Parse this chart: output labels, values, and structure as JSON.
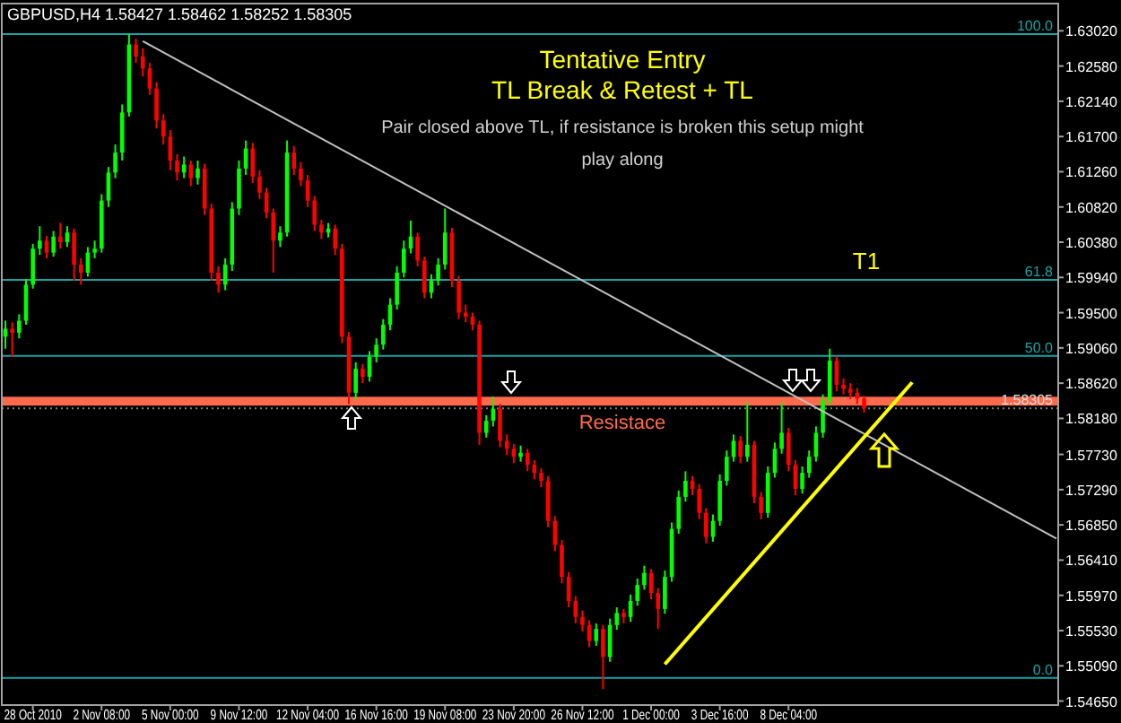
{
  "chart_data": {
    "type": "candlestick",
    "title": "GBPUSD,H4  1.58427 1.58462 1.58252 1.58305",
    "annotations": [
      "Tentative Entry",
      "TL Break & Retest + TL",
      "Pair closed above TL, if resistance is broken this setup might play along",
      {
        "text": "T1",
        "y": 1.5991
      },
      {
        "text": "100.0",
        "y": 1.6298
      },
      {
        "text": "61.8",
        "y": 1.5991
      },
      {
        "text": "50.0",
        "y": 1.5896
      },
      {
        "text": "0.0",
        "y": 1.5494
      }
    ],
    "categories": [
      null,
      null,
      null,
      null,
      "28 Oct 2010",
      null,
      null,
      null,
      null,
      null,
      null,
      null,
      null,
      null,
      "2 Nov 08:00",
      null,
      null,
      null,
      null,
      null,
      null,
      null,
      null,
      null,
      "5 Nov 00:00",
      null,
      null,
      null,
      null,
      null,
      null,
      null,
      null,
      null,
      "9 Nov 12:00",
      null,
      null,
      null,
      null,
      null,
      null,
      null,
      null,
      null,
      "12 Nov 04:00",
      null,
      null,
      null,
      null,
      null,
      null,
      null,
      null,
      null,
      "16 Nov 16:00",
      null,
      null,
      null,
      null,
      null,
      null,
      null,
      null,
      null,
      "19 Nov 08:00",
      null,
      null,
      null,
      null,
      null,
      null,
      null,
      null,
      null,
      "23 Nov 20:00",
      null,
      null,
      null,
      null,
      null,
      null,
      null,
      null,
      null,
      "26 Nov 12:00",
      null,
      null,
      null,
      null,
      null,
      null,
      null,
      null,
      null,
      "1 Dec 00:00",
      null,
      null,
      null,
      null,
      null,
      null,
      null,
      null,
      null,
      "3 Dec 16:00",
      null,
      null,
      null,
      null,
      null,
      null,
      null,
      null,
      null,
      "8 Dec 04:00",
      null,
      null,
      null,
      null,
      null,
      null,
      null,
      null,
      null,
      null,
      null,
      null,
      null,
      null,
      null,
      null,
      null,
      null,
      null,
      null,
      null,
      null,
      null,
      null,
      null,
      null,
      null,
      null,
      null,
      null,
      null,
      null,
      null,
      null,
      null,
      null,
      null,
      null,
      null
    ],
    "ohlc": [
      [
        1.592,
        1.594,
        1.5905,
        1.593
      ],
      [
        1.593,
        1.5938,
        1.5895,
        1.5925
      ],
      [
        1.5925,
        1.5948,
        1.5918,
        1.594
      ],
      [
        1.594,
        1.5992,
        1.5935,
        1.5985
      ],
      [
        1.5985,
        1.6036,
        1.598,
        1.603
      ],
      [
        1.603,
        1.6058,
        1.6022,
        1.604
      ],
      [
        1.604,
        1.6046,
        1.6018,
        1.6025
      ],
      [
        1.6025,
        1.6052,
        1.602,
        1.6045
      ],
      [
        1.6045,
        1.6062,
        1.603,
        1.6038
      ],
      [
        1.6038,
        1.6058,
        1.6032,
        1.605
      ],
      [
        1.605,
        1.6055,
        1.599,
        1.601
      ],
      [
        1.601,
        1.6018,
        1.5985,
        1.6
      ],
      [
        1.6,
        1.6032,
        1.5995,
        1.6025
      ],
      [
        1.6025,
        1.604,
        1.6018,
        1.603
      ],
      [
        1.603,
        1.6098,
        1.6025,
        1.609
      ],
      [
        1.609,
        1.6132,
        1.6082,
        1.6125
      ],
      [
        1.6125,
        1.616,
        1.6118,
        1.615
      ],
      [
        1.615,
        1.621,
        1.614,
        1.62
      ],
      [
        1.62,
        1.6298,
        1.6195,
        1.6285
      ],
      [
        1.6285,
        1.6292,
        1.6262,
        1.627
      ],
      [
        1.627,
        1.628,
        1.6245,
        1.6255
      ],
      [
        1.6255,
        1.6262,
        1.6222,
        1.623
      ],
      [
        1.623,
        1.6238,
        1.618,
        1.619
      ],
      [
        1.619,
        1.6198,
        1.616,
        1.617
      ],
      [
        1.617,
        1.6178,
        1.6128,
        1.614
      ],
      [
        1.614,
        1.6148,
        1.6115,
        1.6125
      ],
      [
        1.6125,
        1.6145,
        1.6118,
        1.6135
      ],
      [
        1.6135,
        1.614,
        1.6108,
        1.6118
      ],
      [
        1.6118,
        1.614,
        1.611,
        1.613
      ],
      [
        1.613,
        1.6136,
        1.6072,
        1.608
      ],
      [
        1.608,
        1.6086,
        1.599,
        1.6
      ],
      [
        1.6,
        1.6008,
        1.5975,
        1.5985
      ],
      [
        1.5985,
        1.6018,
        1.5978,
        1.601
      ],
      [
        1.601,
        1.6088,
        1.6002,
        1.608
      ],
      [
        1.608,
        1.614,
        1.6072,
        1.613
      ],
      [
        1.613,
        1.6165,
        1.6122,
        1.6155
      ],
      [
        1.6155,
        1.6162,
        1.6112,
        1.612
      ],
      [
        1.612,
        1.6128,
        1.6092,
        1.61
      ],
      [
        1.61,
        1.6106,
        1.6068,
        1.6075
      ],
      [
        1.6075,
        1.608,
        1.6,
        1.604
      ],
      [
        1.604,
        1.6058,
        1.6032,
        1.605
      ],
      [
        1.605,
        1.6165,
        1.6045,
        1.615
      ],
      [
        1.615,
        1.6158,
        1.6122,
        1.613
      ],
      [
        1.613,
        1.6138,
        1.6108,
        1.6115
      ],
      [
        1.6115,
        1.6122,
        1.6082,
        1.609
      ],
      [
        1.609,
        1.6096,
        1.6052,
        1.606
      ],
      [
        1.606,
        1.6066,
        1.6042,
        1.605
      ],
      [
        1.605,
        1.6062,
        1.6044,
        1.6055
      ],
      [
        1.6055,
        1.606,
        1.6022,
        1.603
      ],
      [
        1.603,
        1.6036,
        1.5912,
        1.592
      ],
      [
        1.592,
        1.5926,
        1.5836,
        1.585
      ],
      [
        1.585,
        1.5888,
        1.5842,
        1.588
      ],
      [
        1.588,
        1.5886,
        1.5862,
        1.587
      ],
      [
        1.587,
        1.5902,
        1.5864,
        1.5895
      ],
      [
        1.5895,
        1.5918,
        1.5888,
        1.591
      ],
      [
        1.591,
        1.5942,
        1.5904,
        1.5935
      ],
      [
        1.5935,
        1.5968,
        1.5928,
        1.596
      ],
      [
        1.596,
        1.6008,
        1.5954,
        1.6
      ],
      [
        1.6,
        1.604,
        1.5994,
        1.603
      ],
      [
        1.603,
        1.6065,
        1.6024,
        1.6045
      ],
      [
        1.6045,
        1.605,
        1.6008,
        1.6015
      ],
      [
        1.6015,
        1.602,
        1.5968,
        1.5975
      ],
      [
        1.5975,
        1.5998,
        1.5968,
        1.599
      ],
      [
        1.599,
        1.6018,
        1.5984,
        1.601
      ],
      [
        1.601,
        1.608,
        1.6004,
        1.605
      ],
      [
        1.605,
        1.6056,
        1.5982,
        1.599
      ],
      [
        1.599,
        1.5996,
        1.5942,
        1.595
      ],
      [
        1.595,
        1.596,
        1.5938,
        1.5945
      ],
      [
        1.5945,
        1.595,
        1.5928,
        1.5935
      ],
      [
        1.5935,
        1.594,
        1.5785,
        1.58
      ],
      [
        1.58,
        1.5822,
        1.5794,
        1.5815
      ],
      [
        1.5815,
        1.5845,
        1.5808,
        1.583
      ],
      [
        1.583,
        1.5836,
        1.5782,
        1.579
      ],
      [
        1.579,
        1.5798,
        1.5772,
        1.578
      ],
      [
        1.578,
        1.5786,
        1.5762,
        1.577
      ],
      [
        1.577,
        1.5784,
        1.5764,
        1.5775
      ],
      [
        1.5775,
        1.578,
        1.5752,
        1.576
      ],
      [
        1.576,
        1.5766,
        1.5742,
        1.575
      ],
      [
        1.575,
        1.5756,
        1.5732,
        1.574
      ],
      [
        1.574,
        1.5746,
        1.5682,
        1.569
      ],
      [
        1.569,
        1.5696,
        1.5652,
        1.566
      ],
      [
        1.566,
        1.5666,
        1.5612,
        1.562
      ],
      [
        1.562,
        1.5626,
        1.5582,
        1.559
      ],
      [
        1.559,
        1.5596,
        1.5562,
        1.557
      ],
      [
        1.557,
        1.5578,
        1.5552,
        1.556
      ],
      [
        1.556,
        1.5566,
        1.5532,
        1.554
      ],
      [
        1.554,
        1.5562,
        1.5534,
        1.5555
      ],
      [
        1.5555,
        1.556,
        1.548,
        1.552
      ],
      [
        1.552,
        1.5568,
        1.5514,
        1.556
      ],
      [
        1.556,
        1.5582,
        1.5554,
        1.5575
      ],
      [
        1.5575,
        1.558,
        1.5562,
        1.557
      ],
      [
        1.557,
        1.5598,
        1.5564,
        1.559
      ],
      [
        1.559,
        1.5618,
        1.5584,
        1.561
      ],
      [
        1.561,
        1.5634,
        1.5604,
        1.5625
      ],
      [
        1.5625,
        1.563,
        1.5592,
        1.56
      ],
      [
        1.56,
        1.5606,
        1.5555,
        1.558
      ],
      [
        1.558,
        1.5628,
        1.5574,
        1.562
      ],
      [
        1.562,
        1.5688,
        1.5614,
        1.568
      ],
      [
        1.568,
        1.5728,
        1.5674,
        1.572
      ],
      [
        1.572,
        1.5752,
        1.5714,
        1.574
      ],
      [
        1.574,
        1.5746,
        1.5722,
        1.573
      ],
      [
        1.573,
        1.5736,
        1.5692,
        1.57
      ],
      [
        1.57,
        1.5706,
        1.5662,
        1.567
      ],
      [
        1.567,
        1.5698,
        1.5664,
        1.569
      ],
      [
        1.569,
        1.5748,
        1.5684,
        1.574
      ],
      [
        1.574,
        1.5778,
        1.5734,
        1.577
      ],
      [
        1.577,
        1.5798,
        1.5764,
        1.579
      ],
      [
        1.579,
        1.5796,
        1.5762,
        1.577
      ],
      [
        1.577,
        1.5838,
        1.5764,
        1.5785
      ],
      [
        1.5785,
        1.579,
        1.5712,
        1.572
      ],
      [
        1.572,
        1.5726,
        1.5692,
        1.57
      ],
      [
        1.57,
        1.5758,
        1.5694,
        1.575
      ],
      [
        1.575,
        1.5788,
        1.5744,
        1.578
      ],
      [
        1.578,
        1.5838,
        1.5774,
        1.58
      ],
      [
        1.58,
        1.5806,
        1.5752,
        1.576
      ],
      [
        1.576,
        1.5766,
        1.5722,
        1.573
      ],
      [
        1.573,
        1.5758,
        1.5724,
        1.575
      ],
      [
        1.575,
        1.5778,
        1.5744,
        1.577
      ],
      [
        1.577,
        1.5808,
        1.5764,
        1.58
      ],
      [
        1.58,
        1.5848,
        1.5794,
        1.584
      ],
      [
        1.584,
        1.5905,
        1.5834,
        1.589
      ],
      [
        1.589,
        1.5896,
        1.5852,
        1.586
      ],
      [
        1.586,
        1.5868,
        1.5848,
        1.5855
      ],
      [
        1.5855,
        1.5862,
        1.5842,
        1.585
      ],
      [
        1.585,
        1.5856,
        1.5836,
        1.58427
      ],
      [
        1.58427,
        1.58462,
        1.58252,
        1.58305
      ],
      null,
      null,
      null,
      null,
      null,
      null,
      null,
      null,
      null,
      null,
      null,
      null,
      null,
      null,
      null,
      null,
      null,
      null,
      null,
      null,
      null,
      null,
      null,
      null,
      null,
      null,
      null,
      null
    ],
    "series": [
      {
        "type": "line",
        "color": "#c0c0c0",
        "values": [
          null,
          null,
          null,
          null,
          null,
          null,
          null,
          null,
          null,
          null,
          null,
          null,
          null,
          null,
          null,
          null,
          null,
          null,
          null,
          null,
          1.6289,
          null,
          null,
          null,
          null,
          null,
          null,
          null,
          null,
          null,
          null,
          null,
          null,
          null,
          null,
          null,
          null,
          null,
          null,
          null,
          null,
          null,
          null,
          null,
          null,
          null,
          null,
          null,
          null,
          null,
          null,
          null,
          null,
          null,
          null,
          null,
          null,
          null,
          null,
          null,
          null,
          null,
          null,
          null,
          null,
          null,
          null,
          null,
          null,
          null,
          null,
          null,
          null,
          null,
          null,
          null,
          null,
          null,
          null,
          null,
          null,
          null,
          null,
          null,
          null,
          null,
          null,
          null,
          null,
          null,
          null,
          null,
          null,
          null,
          null,
          null,
          null,
          null,
          null,
          null,
          null,
          null,
          null,
          null,
          null,
          null,
          null,
          null,
          null,
          null,
          null,
          null,
          null,
          null,
          null,
          null,
          null,
          null,
          null,
          null,
          null,
          null,
          null,
          null,
          null,
          null,
          null,
          null,
          null,
          null,
          null,
          null,
          null,
          null,
          null,
          null,
          null,
          null,
          null,
          null,
          null,
          null,
          null,
          null,
          null,
          null,
          null,
          null,
          null,
          null,
          null,
          null,
          null,
          1.5668
        ]
      },
      {
        "type": "line",
        "color": "#ffff00",
        "values": [
          null,
          null,
          null,
          null,
          null,
          null,
          null,
          null,
          null,
          null,
          null,
          null,
          null,
          null,
          null,
          null,
          null,
          null,
          null,
          null,
          null,
          null,
          null,
          null,
          null,
          null,
          null,
          null,
          null,
          null,
          null,
          null,
          null,
          null,
          null,
          null,
          null,
          null,
          null,
          null,
          null,
          null,
          null,
          null,
          null,
          null,
          null,
          null,
          null,
          null,
          null,
          null,
          null,
          null,
          null,
          null,
          null,
          null,
          null,
          null,
          null,
          null,
          null,
          null,
          null,
          null,
          null,
          null,
          null,
          null,
          null,
          null,
          null,
          null,
          null,
          null,
          null,
          null,
          null,
          null,
          null,
          null,
          null,
          null,
          null,
          null,
          null,
          null,
          null,
          null,
          null,
          null,
          null,
          null,
          null,
          null,
          1.5511,
          null,
          null,
          null,
          null,
          null,
          null,
          null,
          null,
          null,
          null,
          null,
          null,
          null,
          null,
          null,
          null,
          null,
          null,
          null,
          null,
          null,
          null,
          null,
          null,
          null,
          null,
          null,
          null,
          null,
          null,
          null,
          null,
          null,
          null,
          null,
          1.5863,
          null,
          null,
          null,
          null,
          null,
          null,
          null,
          null,
          null,
          null,
          null,
          null,
          null,
          null,
          null,
          null,
          null,
          null,
          null,
          null,
          null
        ]
      }
    ],
    "bands": [
      {
        "axis": "y",
        "from": 1.5834,
        "to": 1.5845,
        "label": "Resistace",
        "color": "#ff6a4d"
      }
    ],
    "ref_lines": [
      {
        "axis": "y",
        "value": 1.6298,
        "color": "#1aa3a3"
      },
      {
        "axis": "y",
        "value": 1.5991,
        "color": "#1aa3a3"
      },
      {
        "axis": "y",
        "value": 1.5896,
        "color": "#1aa3a3"
      },
      {
        "axis": "y",
        "value": 1.5494,
        "color": "#1aa3a3"
      },
      {
        "axis": "y",
        "value": 1.58305,
        "label": "1.58305",
        "color": "#808080",
        "line_style": "dotted"
      }
    ],
    "ylim": [
      1.546,
      1.6336
    ],
    "yticks": [
      {
        "value": 1.6302,
        "label": "1.63020"
      },
      {
        "value": 1.6258,
        "label": "1.62580"
      },
      {
        "value": 1.6214,
        "label": "1.62140"
      },
      {
        "value": 1.617,
        "label": "1.61700"
      },
      {
        "value": 1.6126,
        "label": "1.61260"
      },
      {
        "value": 1.6082,
        "label": "1.60820"
      },
      {
        "value": 1.6038,
        "label": "1.60380"
      },
      {
        "value": 1.5994,
        "label": "1.59940"
      },
      {
        "value": 1.595,
        "label": "1.59500"
      },
      {
        "value": 1.5906,
        "label": "1.59060"
      },
      {
        "value": 1.5862,
        "label": "1.58620"
      },
      {
        "value": 1.5818,
        "label": "1.58180"
      },
      {
        "value": 1.5773,
        "label": "1.57730"
      },
      {
        "value": 1.5729,
        "label": "1.57290"
      },
      {
        "value": 1.5685,
        "label": "1.56850"
      },
      {
        "value": 1.5641,
        "label": "1.56410"
      },
      {
        "value": 1.5597,
        "label": "1.55970"
      },
      {
        "value": 1.5553,
        "label": "1.55530"
      },
      {
        "value": 1.5509,
        "label": "1.55090"
      },
      {
        "value": 1.5465,
        "label": "1.54650"
      }
    ]
  }
}
